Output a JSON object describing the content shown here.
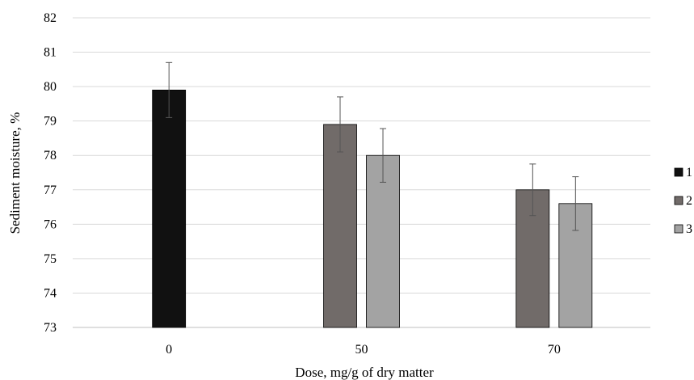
{
  "chart_data": {
    "type": "bar",
    "title": "",
    "xlabel": "Dose, mg/g of dry matter",
    "ylabel": "Sediment moisture, %",
    "ylim": [
      73,
      82
    ],
    "y_ticks": [
      73,
      74,
      75,
      76,
      77,
      78,
      79,
      80,
      81,
      82
    ],
    "categories": [
      "0",
      "50",
      "70"
    ],
    "grid": true,
    "legend_position": "right",
    "series": [
      {
        "name": "1",
        "color": "#111111",
        "values": [
          79.9,
          null,
          null
        ],
        "errors": [
          0.8,
          null,
          null
        ]
      },
      {
        "name": "2",
        "color": "#716b69",
        "values": [
          null,
          78.9,
          77.0
        ],
        "errors": [
          null,
          0.8,
          0.75
        ]
      },
      {
        "name": "3",
        "color": "#a3a3a3",
        "values": [
          null,
          78.0,
          76.6
        ],
        "errors": [
          null,
          0.78,
          0.78
        ]
      }
    ]
  }
}
